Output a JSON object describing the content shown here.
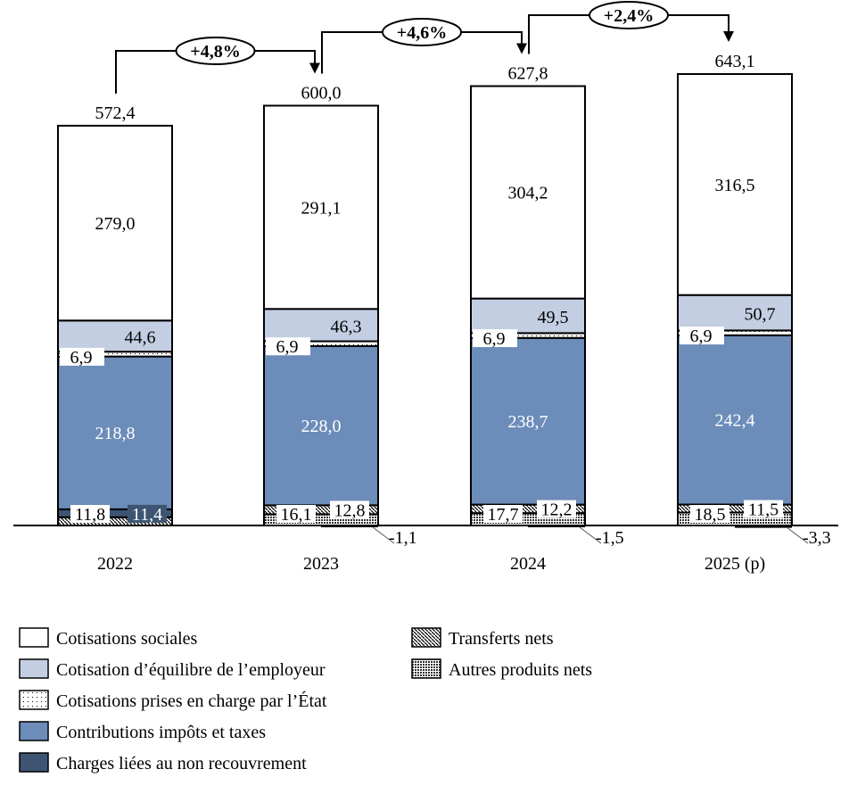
{
  "chart_data": {
    "type": "bar",
    "stacked": true,
    "categories": [
      "2022",
      "2023",
      "2024",
      "2025 (p)"
    ],
    "totals": [
      "572,4",
      "600,0",
      "627,8",
      "643,1"
    ],
    "growth": [
      "+4,8%",
      "+4,6%",
      "+2,4%"
    ],
    "series": [
      {
        "name": "Autres produits nets",
        "values": [
          0,
          16.1,
          17.7,
          18.5
        ],
        "labels": [
          "",
          "16,1",
          "17,7",
          "18,5"
        ],
        "pattern": "checker"
      },
      {
        "name": "Transferts nets",
        "values": [
          11.8,
          12.8,
          12.2,
          11.5
        ],
        "labels": [
          "11,8",
          "12,8",
          "12,2",
          "11,5"
        ],
        "pattern": "hatch"
      },
      {
        "name": "Charges liées au non recouvrement",
        "values": [
          11.4,
          -1.1,
          -1.5,
          -3.3
        ],
        "labels": [
          "11,4",
          "-1,1",
          "-1,5",
          "-3,3"
        ],
        "color": "#3d5573"
      },
      {
        "name": "Contributions impôts et taxes",
        "values": [
          218.8,
          228.0,
          238.7,
          242.4
        ],
        "labels": [
          "218,8",
          "228,0",
          "238,7",
          "242,4"
        ],
        "color": "#6c8cb9"
      },
      {
        "name": "Cotisations prises en charge par l’État",
        "values": [
          6.9,
          6.9,
          6.9,
          6.9
        ],
        "labels": [
          "6,9",
          "6,9",
          "6,9",
          "6,9"
        ],
        "pattern": "dots"
      },
      {
        "name": "Cotisation d’équilibre de l’employeur",
        "values": [
          44.6,
          46.3,
          49.5,
          50.7
        ],
        "labels": [
          "44,6",
          "46,3",
          "49,5",
          "50,7"
        ],
        "color": "#c3cee2"
      },
      {
        "name": "Cotisations sociales",
        "values": [
          279.0,
          291.1,
          304.2,
          316.5
        ],
        "labels": [
          "279,0",
          "291,1",
          "304,2",
          "316,5"
        ],
        "color": "#ffffff"
      }
    ],
    "legend_order": [
      "Cotisations sociales",
      "Cotisation d’équilibre de l’employeur",
      "Cotisations prises en charge par l’État",
      "Contributions impôts et taxes",
      "Charges liées au non recouvrement",
      "Transferts nets",
      "Autres produits nets"
    ],
    "legend_placement": "bottom",
    "grid": false
  }
}
